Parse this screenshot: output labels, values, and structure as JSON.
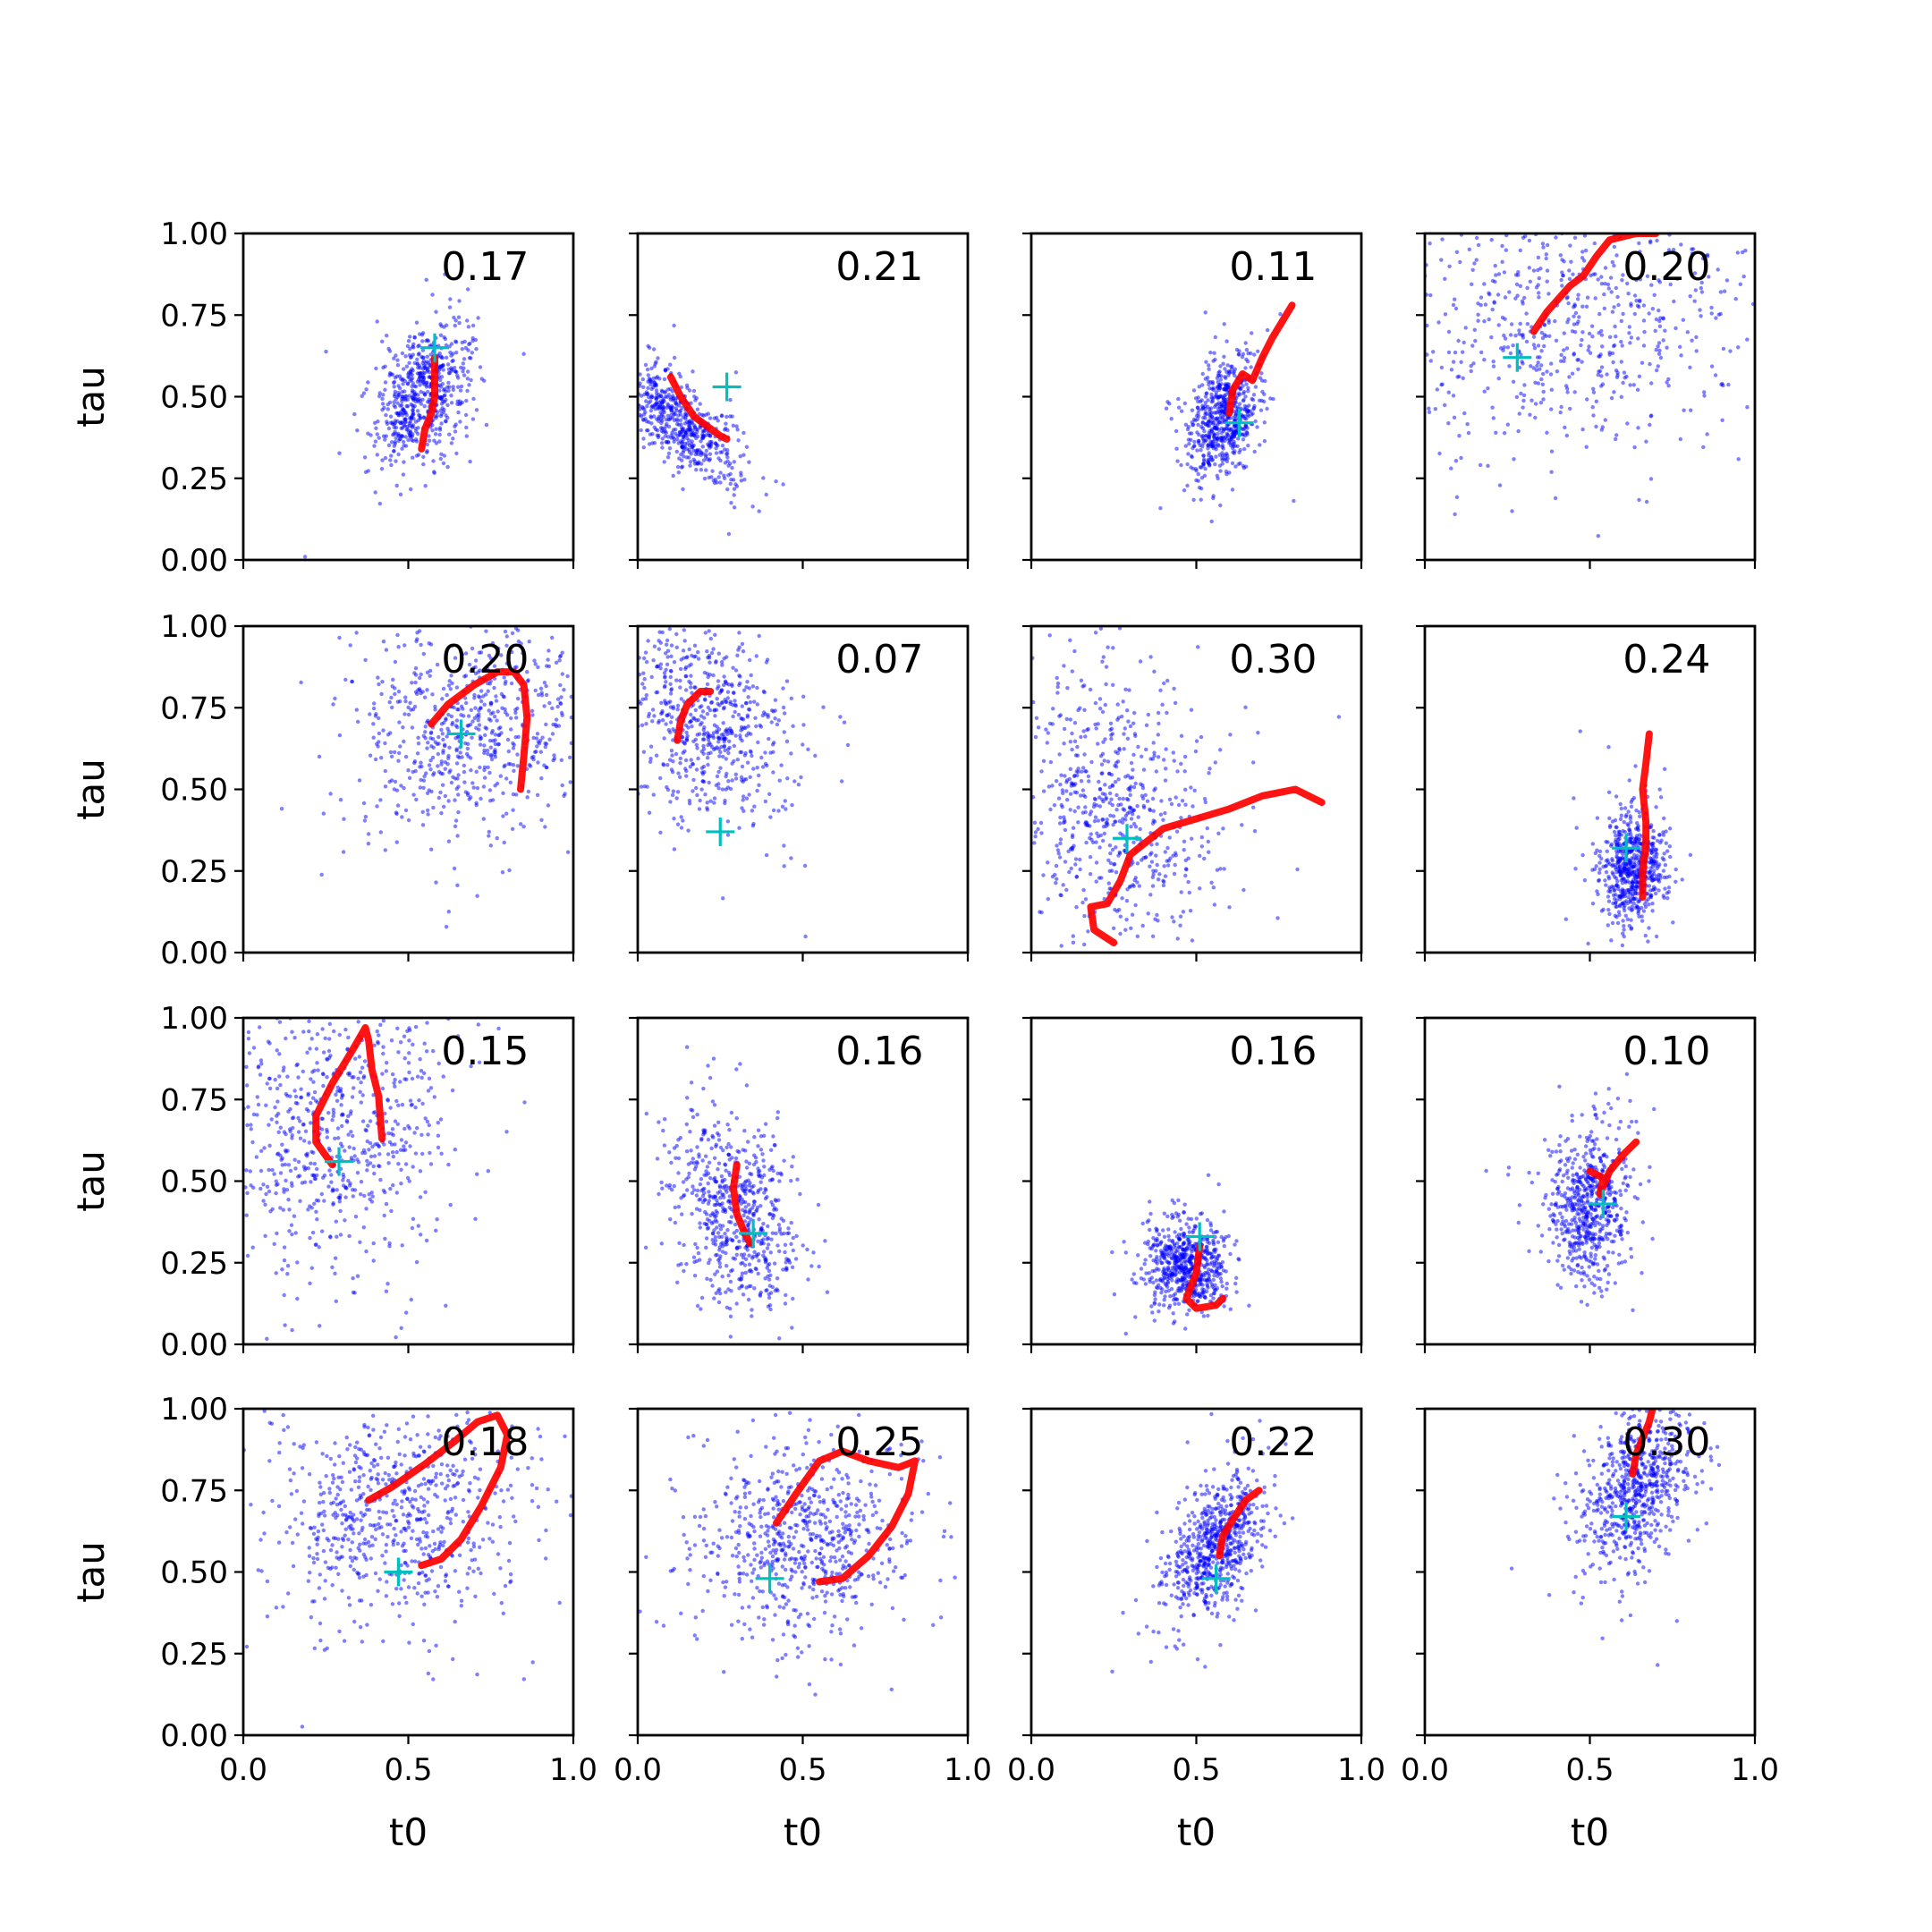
{
  "figure": {
    "x_axis_label": "t0",
    "y_axis_label": "tau",
    "x_ticks": [
      "0.0",
      "0.5",
      "1.0"
    ],
    "y_ticks": [
      "0.00",
      "0.25",
      "0.50",
      "0.75",
      "1.00"
    ],
    "colors": {
      "cloud": "#0000ff",
      "trace": "#ff0000",
      "marker": "#00bfbf"
    }
  },
  "chart_data": [
    {
      "type": "scatter",
      "row": 1,
      "col": 1,
      "annotation": "0.17",
      "xlim": [
        0,
        1
      ],
      "ylim": [
        0,
        1
      ],
      "cloud": {
        "center": [
          0.54,
          0.5
        ],
        "spread": [
          0.07,
          0.1
        ],
        "rho": 0.3,
        "n": 650
      },
      "marker": [
        0.58,
        0.65
      ],
      "trace": [
        [
          0.54,
          0.34
        ],
        [
          0.55,
          0.4
        ],
        [
          0.57,
          0.45
        ],
        [
          0.58,
          0.5
        ],
        [
          0.58,
          0.56
        ],
        [
          0.58,
          0.62
        ]
      ]
    },
    {
      "type": "scatter",
      "row": 1,
      "col": 2,
      "annotation": "0.21",
      "xlim": [
        0,
        1
      ],
      "ylim": [
        0,
        1
      ],
      "cloud": {
        "center": [
          0.13,
          0.42
        ],
        "spread": [
          0.09,
          0.09
        ],
        "rho": -0.7,
        "n": 600
      },
      "marker": [
        0.27,
        0.53
      ],
      "trace": [
        [
          0.1,
          0.56
        ],
        [
          0.13,
          0.5
        ],
        [
          0.17,
          0.44
        ],
        [
          0.21,
          0.41
        ],
        [
          0.25,
          0.38
        ],
        [
          0.27,
          0.37
        ]
      ]
    },
    {
      "type": "scatter",
      "row": 1,
      "col": 3,
      "annotation": "0.11",
      "xlim": [
        0,
        1
      ],
      "ylim": [
        0,
        1
      ],
      "cloud": {
        "center": [
          0.58,
          0.44
        ],
        "spread": [
          0.05,
          0.09
        ],
        "rho": 0.3,
        "n": 650
      },
      "marker": [
        0.63,
        0.42
      ],
      "trace": [
        [
          0.6,
          0.45
        ],
        [
          0.61,
          0.52
        ],
        [
          0.64,
          0.57
        ],
        [
          0.67,
          0.55
        ],
        [
          0.7,
          0.62
        ],
        [
          0.73,
          0.68
        ],
        [
          0.79,
          0.78
        ]
      ]
    },
    {
      "type": "scatter",
      "row": 1,
      "col": 4,
      "annotation": "0.20",
      "xlim": [
        0,
        1
      ],
      "ylim": [
        0,
        1
      ],
      "cloud": {
        "center": [
          0.45,
          0.75
        ],
        "spread": [
          0.27,
          0.2
        ],
        "rho": 0.1,
        "n": 700
      },
      "marker": [
        0.28,
        0.62
      ],
      "trace": [
        [
          0.33,
          0.7
        ],
        [
          0.37,
          0.76
        ],
        [
          0.44,
          0.84
        ],
        [
          0.48,
          0.87
        ],
        [
          0.52,
          0.93
        ],
        [
          0.56,
          0.98
        ],
        [
          0.64,
          1.0
        ],
        [
          0.7,
          1.0
        ]
      ]
    },
    {
      "type": "scatter",
      "row": 2,
      "col": 1,
      "annotation": "0.20",
      "xlim": [
        0,
        1
      ],
      "ylim": [
        0,
        1
      ],
      "cloud": {
        "center": [
          0.7,
          0.7
        ],
        "spread": [
          0.17,
          0.17
        ],
        "rho": 0.1,
        "n": 700
      },
      "marker": [
        0.66,
        0.67
      ],
      "trace": [
        [
          0.57,
          0.7
        ],
        [
          0.62,
          0.76
        ],
        [
          0.7,
          0.82
        ],
        [
          0.77,
          0.86
        ],
        [
          0.82,
          0.86
        ],
        [
          0.85,
          0.82
        ],
        [
          0.86,
          0.72
        ],
        [
          0.85,
          0.6
        ],
        [
          0.84,
          0.5
        ]
      ]
    },
    {
      "type": "scatter",
      "row": 2,
      "col": 2,
      "annotation": "0.07",
      "xlim": [
        0,
        1
      ],
      "ylim": [
        0,
        1
      ],
      "cloud": {
        "center": [
          0.2,
          0.72
        ],
        "spread": [
          0.13,
          0.15
        ],
        "rho": -0.3,
        "n": 650
      },
      "marker": [
        0.25,
        0.37
      ],
      "trace": [
        [
          0.12,
          0.65
        ],
        [
          0.13,
          0.71
        ],
        [
          0.15,
          0.76
        ],
        [
          0.19,
          0.8
        ],
        [
          0.22,
          0.8
        ]
      ]
    },
    {
      "type": "scatter",
      "row": 2,
      "col": 3,
      "annotation": "0.30",
      "xlim": [
        0,
        1
      ],
      "ylim": [
        0,
        1
      ],
      "cloud": {
        "center": [
          0.25,
          0.42
        ],
        "spread": [
          0.15,
          0.22
        ],
        "rho": -0.2,
        "n": 700
      },
      "marker": [
        0.29,
        0.35
      ],
      "trace": [
        [
          0.25,
          0.03
        ],
        [
          0.19,
          0.07
        ],
        [
          0.18,
          0.14
        ],
        [
          0.23,
          0.15
        ],
        [
          0.27,
          0.22
        ],
        [
          0.3,
          0.3
        ],
        [
          0.4,
          0.38
        ],
        [
          0.5,
          0.41
        ],
        [
          0.6,
          0.44
        ],
        [
          0.7,
          0.48
        ],
        [
          0.8,
          0.5
        ],
        [
          0.88,
          0.46
        ]
      ]
    },
    {
      "type": "scatter",
      "row": 2,
      "col": 4,
      "annotation": "0.24",
      "xlim": [
        0,
        1
      ],
      "ylim": [
        0,
        1
      ],
      "cloud": {
        "center": [
          0.63,
          0.26
        ],
        "spread": [
          0.05,
          0.09
        ],
        "rho": 0.1,
        "n": 650
      },
      "marker": [
        0.61,
        0.32
      ],
      "trace": [
        [
          0.66,
          0.17
        ],
        [
          0.66,
          0.25
        ],
        [
          0.67,
          0.33
        ],
        [
          0.67,
          0.4
        ],
        [
          0.66,
          0.5
        ],
        [
          0.67,
          0.58
        ],
        [
          0.68,
          0.67
        ]
      ]
    },
    {
      "type": "scatter",
      "row": 3,
      "col": 1,
      "annotation": "0.15",
      "xlim": [
        0,
        1
      ],
      "ylim": [
        0,
        1
      ],
      "cloud": {
        "center": [
          0.28,
          0.65
        ],
        "spread": [
          0.17,
          0.22
        ],
        "rho": 0.1,
        "n": 700
      },
      "marker": [
        0.29,
        0.56
      ],
      "trace": [
        [
          0.27,
          0.55
        ],
        [
          0.22,
          0.62
        ],
        [
          0.22,
          0.7
        ],
        [
          0.27,
          0.8
        ],
        [
          0.33,
          0.9
        ],
        [
          0.37,
          0.97
        ],
        [
          0.38,
          0.93
        ],
        [
          0.39,
          0.84
        ],
        [
          0.41,
          0.76
        ],
        [
          0.42,
          0.63
        ]
      ]
    },
    {
      "type": "scatter",
      "row": 3,
      "col": 2,
      "annotation": "0.16",
      "xlim": [
        0,
        1
      ],
      "ylim": [
        0,
        1
      ],
      "cloud": {
        "center": [
          0.29,
          0.4
        ],
        "spread": [
          0.09,
          0.15
        ],
        "rho": -0.3,
        "n": 650
      },
      "marker": [
        0.35,
        0.34
      ],
      "trace": [
        [
          0.3,
          0.55
        ],
        [
          0.29,
          0.48
        ],
        [
          0.3,
          0.4
        ],
        [
          0.32,
          0.35
        ],
        [
          0.34,
          0.31
        ]
      ]
    },
    {
      "type": "scatter",
      "row": 3,
      "col": 3,
      "annotation": "0.16",
      "xlim": [
        0,
        1
      ],
      "ylim": [
        0,
        1
      ],
      "cloud": {
        "center": [
          0.47,
          0.24
        ],
        "spread": [
          0.06,
          0.07
        ],
        "rho": 0.0,
        "n": 650
      },
      "marker": [
        0.51,
        0.33
      ],
      "trace": [
        [
          0.51,
          0.3
        ],
        [
          0.5,
          0.22
        ],
        [
          0.47,
          0.14
        ],
        [
          0.5,
          0.11
        ],
        [
          0.56,
          0.12
        ],
        [
          0.58,
          0.14
        ]
      ]
    },
    {
      "type": "scatter",
      "row": 3,
      "col": 4,
      "annotation": "0.10",
      "xlim": [
        0,
        1
      ],
      "ylim": [
        0,
        1
      ],
      "cloud": {
        "center": [
          0.5,
          0.42
        ],
        "spread": [
          0.06,
          0.11
        ],
        "rho": 0.1,
        "n": 650
      },
      "marker": [
        0.54,
        0.43
      ],
      "trace": [
        [
          0.5,
          0.53
        ],
        [
          0.54,
          0.51
        ],
        [
          0.53,
          0.46
        ],
        [
          0.56,
          0.53
        ],
        [
          0.6,
          0.58
        ],
        [
          0.64,
          0.62
        ]
      ]
    },
    {
      "type": "scatter",
      "row": 4,
      "col": 1,
      "annotation": "0.18",
      "xlim": [
        0,
        1
      ],
      "ylim": [
        0,
        1
      ],
      "cloud": {
        "center": [
          0.45,
          0.68
        ],
        "spread": [
          0.19,
          0.17
        ],
        "rho": 0.0,
        "n": 700
      },
      "marker": [
        0.47,
        0.5
      ],
      "trace": [
        [
          0.38,
          0.72
        ],
        [
          0.45,
          0.76
        ],
        [
          0.55,
          0.83
        ],
        [
          0.64,
          0.9
        ],
        [
          0.71,
          0.96
        ],
        [
          0.77,
          0.98
        ],
        [
          0.8,
          0.92
        ],
        [
          0.78,
          0.82
        ],
        [
          0.72,
          0.7
        ],
        [
          0.66,
          0.6
        ],
        [
          0.6,
          0.54
        ],
        [
          0.54,
          0.52
        ]
      ]
    },
    {
      "type": "scatter",
      "row": 4,
      "col": 2,
      "annotation": "0.25",
      "xlim": [
        0,
        1
      ],
      "ylim": [
        0,
        1
      ],
      "cloud": {
        "center": [
          0.5,
          0.6
        ],
        "spread": [
          0.17,
          0.15
        ],
        "rho": 0.0,
        "n": 700
      },
      "marker": [
        0.4,
        0.48
      ],
      "trace": [
        [
          0.42,
          0.65
        ],
        [
          0.48,
          0.74
        ],
        [
          0.55,
          0.84
        ],
        [
          0.62,
          0.87
        ],
        [
          0.7,
          0.84
        ],
        [
          0.79,
          0.82
        ],
        [
          0.84,
          0.84
        ],
        [
          0.82,
          0.74
        ],
        [
          0.77,
          0.64
        ],
        [
          0.7,
          0.55
        ],
        [
          0.62,
          0.48
        ],
        [
          0.55,
          0.47
        ]
      ]
    },
    {
      "type": "scatter",
      "row": 4,
      "col": 3,
      "annotation": "0.22",
      "xlim": [
        0,
        1
      ],
      "ylim": [
        0,
        1
      ],
      "cloud": {
        "center": [
          0.56,
          0.58
        ],
        "spread": [
          0.07,
          0.1
        ],
        "rho": 0.5,
        "n": 700
      },
      "marker": [
        0.56,
        0.48
      ],
      "trace": [
        [
          0.57,
          0.55
        ],
        [
          0.58,
          0.61
        ],
        [
          0.61,
          0.66
        ],
        [
          0.65,
          0.72
        ],
        [
          0.69,
          0.75
        ]
      ]
    },
    {
      "type": "scatter",
      "row": 4,
      "col": 4,
      "annotation": "0.30",
      "xlim": [
        0,
        1
      ],
      "ylim": [
        0,
        1
      ],
      "cloud": {
        "center": [
          0.64,
          0.76
        ],
        "spread": [
          0.08,
          0.12
        ],
        "rho": 0.4,
        "n": 700
      },
      "marker": [
        0.61,
        0.67
      ],
      "trace": [
        [
          0.63,
          0.8
        ],
        [
          0.64,
          0.86
        ],
        [
          0.66,
          0.91
        ],
        [
          0.68,
          0.96
        ],
        [
          0.69,
          1.0
        ]
      ]
    }
  ]
}
